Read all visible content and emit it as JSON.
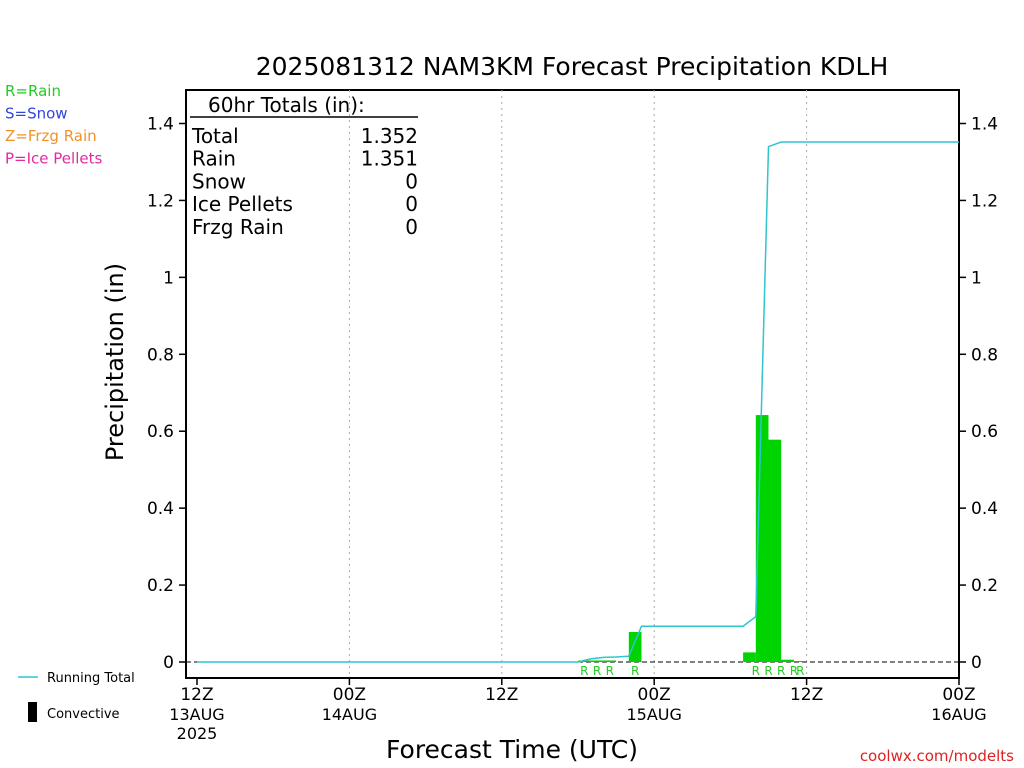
{
  "chart_data": {
    "type": "bar",
    "title": "2025081312 NAM3KM Forecast Precipitation KDLH",
    "xlabel": "Forecast Time (UTC)",
    "ylabel": "Precipitation (in)",
    "ylim": [
      0,
      1.48
    ],
    "y_ticks": [
      "0",
      "0.2",
      "0.4",
      "0.6",
      "0.8",
      "1",
      "1.2",
      "1.4"
    ],
    "x_range_hours": [
      0,
      60
    ],
    "x_ticks": [
      {
        "hour": 0,
        "label": "12Z",
        "sub": "13AUG",
        "sub2": "2025"
      },
      {
        "hour": 12,
        "label": "00Z",
        "sub": "14AUG",
        "sub2": ""
      },
      {
        "hour": 24,
        "label": "12Z",
        "sub": "",
        "sub2": ""
      },
      {
        "hour": 36,
        "label": "00Z",
        "sub": "15AUG",
        "sub2": ""
      },
      {
        "hour": 48,
        "label": "12Z",
        "sub": "",
        "sub2": ""
      },
      {
        "hour": 60,
        "label": "00Z",
        "sub": "16AUG",
        "sub2": ""
      }
    ],
    "bars": [
      {
        "hour": 30.5,
        "value": 0.004,
        "convective": 0.0
      },
      {
        "hour": 31.5,
        "value": 0.004,
        "convective": 0.0
      },
      {
        "hour": 32.5,
        "value": 0.004,
        "convective": 0.0
      },
      {
        "hour": 34.5,
        "value": 0.078,
        "convective": 0.0
      },
      {
        "hour": 43.5,
        "value": 0.025,
        "convective": 0.0
      },
      {
        "hour": 44.5,
        "value": 0.642,
        "convective": 0.0
      },
      {
        "hour": 45.5,
        "value": 0.578,
        "convective": 0.0
      },
      {
        "hour": 46.5,
        "value": 0.006,
        "convective": 0.0
      },
      {
        "hour": 47.5,
        "value": 0.002,
        "convective": 0.0
      }
    ],
    "ptype_markers": [
      {
        "hour": 30.5,
        "type": "R"
      },
      {
        "hour": 31.5,
        "type": "R"
      },
      {
        "hour": 32.5,
        "type": "R"
      },
      {
        "hour": 34.5,
        "type": "R"
      },
      {
        "hour": 44.0,
        "type": "R"
      },
      {
        "hour": 45.0,
        "type": "R"
      },
      {
        "hour": 46.0,
        "type": "R"
      },
      {
        "hour": 47.0,
        "type": "R"
      },
      {
        "hour": 47.5,
        "type": "R"
      }
    ],
    "running_total": {
      "name": "Running Total",
      "points": [
        [
          0,
          0
        ],
        [
          30,
          0
        ],
        [
          31,
          0.008
        ],
        [
          32,
          0.012
        ],
        [
          33,
          0.013
        ],
        [
          34,
          0.015
        ],
        [
          35,
          0.093
        ],
        [
          43,
          0.093
        ],
        [
          44,
          0.118
        ],
        [
          45,
          1.34
        ],
        [
          46,
          1.352
        ],
        [
          60,
          1.352
        ]
      ]
    },
    "totals_table": {
      "heading": "60hr Totals (in):",
      "rows": [
        {
          "label": "Total",
          "value": "1.352"
        },
        {
          "label": "Rain",
          "value": "1.351"
        },
        {
          "label": "Snow",
          "value": "0"
        },
        {
          "label": "Ice Pellets",
          "value": "0"
        },
        {
          "label": "Frzg Rain",
          "value": "0"
        }
      ]
    },
    "ptype_legend": [
      {
        "text": "R=Rain",
        "color": "#22cc22"
      },
      {
        "text": "S=Snow",
        "color": "#3344dd"
      },
      {
        "text": "Z=Frzg Rain",
        "color": "#f0922a"
      },
      {
        "text": "P=Ice Pellets",
        "color": "#e02aa0"
      }
    ],
    "legend": {
      "running_total_label": "Running Total",
      "convective_label": "Convective"
    },
    "colors": {
      "rain_bar": "#00d400",
      "running_total": "#2fc4d0",
      "convective": "#000000",
      "axis": "#000000",
      "grid": "#aaaaaa"
    },
    "credit": "coolwx.com/modelts",
    "grid": "vertical dotted lines at 12-hour ticks"
  }
}
